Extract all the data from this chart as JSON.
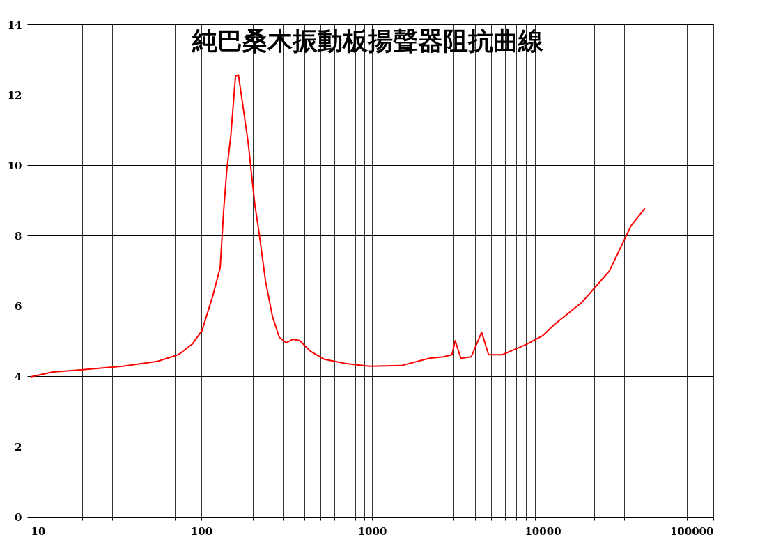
{
  "chart_data": {
    "type": "line",
    "title": "純巴桑木振動板揚聲器阻抗曲線",
    "x": [
      10,
      13.5,
      19.7,
      34.6,
      55.3,
      73.3,
      88.4,
      101,
      117,
      129,
      135,
      141,
      149,
      158.6,
      165,
      171,
      188,
      206,
      218,
      238,
      261,
      286,
      314,
      345,
      378,
      435,
      526,
      697,
      969,
      1484,
      2169,
      2616,
      2939,
      3075,
      3315,
      3817,
      4389,
      4821,
      5807,
      8060,
      10000,
      11720,
      17000,
      24600,
      32980,
      39680
    ],
    "series": [
      {
        "color": "#ff0000",
        "values": [
          3.98,
          4.12,
          4.18,
          4.28,
          4.42,
          4.61,
          4.91,
          5.3,
          6.3,
          7.09,
          8.67,
          9.86,
          10.85,
          12.53,
          12.57,
          12.04,
          10.65,
          8.87,
          8.08,
          6.69,
          5.7,
          5.11,
          4.95,
          5.05,
          5.01,
          4.71,
          4.48,
          4.36,
          4.28,
          4.3,
          4.51,
          4.55,
          4.61,
          5.01,
          4.51,
          4.55,
          5.25,
          4.61,
          4.61,
          4.91,
          5.15,
          5.47,
          6.1,
          6.99,
          8.28,
          8.77
        ]
      }
    ],
    "log": "x",
    "xlim": [
      10,
      100000
    ],
    "xticks": [
      10,
      {
        "value": 20,
        "label": null
      },
      {
        "value": 30,
        "label": null
      },
      {
        "value": 40,
        "label": null
      },
      {
        "value": 50,
        "label": null
      },
      {
        "value": 60,
        "label": null
      },
      {
        "value": 70,
        "label": null
      },
      {
        "value": 80,
        "label": null
      },
      {
        "value": 90,
        "label": null
      },
      100,
      {
        "value": 200,
        "label": null
      },
      {
        "value": 300,
        "label": null
      },
      {
        "value": 400,
        "label": null
      },
      {
        "value": 500,
        "label": null
      },
      {
        "value": 600,
        "label": null
      },
      {
        "value": 700,
        "label": null
      },
      {
        "value": 800,
        "label": null
      },
      {
        "value": 900,
        "label": null
      },
      1000,
      {
        "value": 2000,
        "label": null
      },
      {
        "value": 3000,
        "label": null
      },
      {
        "value": 4000,
        "label": null
      },
      {
        "value": 5000,
        "label": null
      },
      {
        "value": 6000,
        "label": null
      },
      {
        "value": 7000,
        "label": null
      },
      {
        "value": 8000,
        "label": null
      },
      {
        "value": 9000,
        "label": null
      },
      10000,
      {
        "value": 20000,
        "label": null
      },
      {
        "value": 30000,
        "label": null
      },
      {
        "value": 40000,
        "label": null
      },
      {
        "value": 50000,
        "label": null
      },
      {
        "value": 60000,
        "label": null
      },
      {
        "value": 70000,
        "label": null
      },
      {
        "value": 80000,
        "label": null
      },
      {
        "value": 90000,
        "label": null
      },
      100000
    ],
    "ylim": [
      0,
      14
    ],
    "yticks": [
      0,
      2,
      4,
      6,
      8,
      10,
      12,
      14
    ],
    "grid": true,
    "marker": "none",
    "line_style": "solid"
  }
}
